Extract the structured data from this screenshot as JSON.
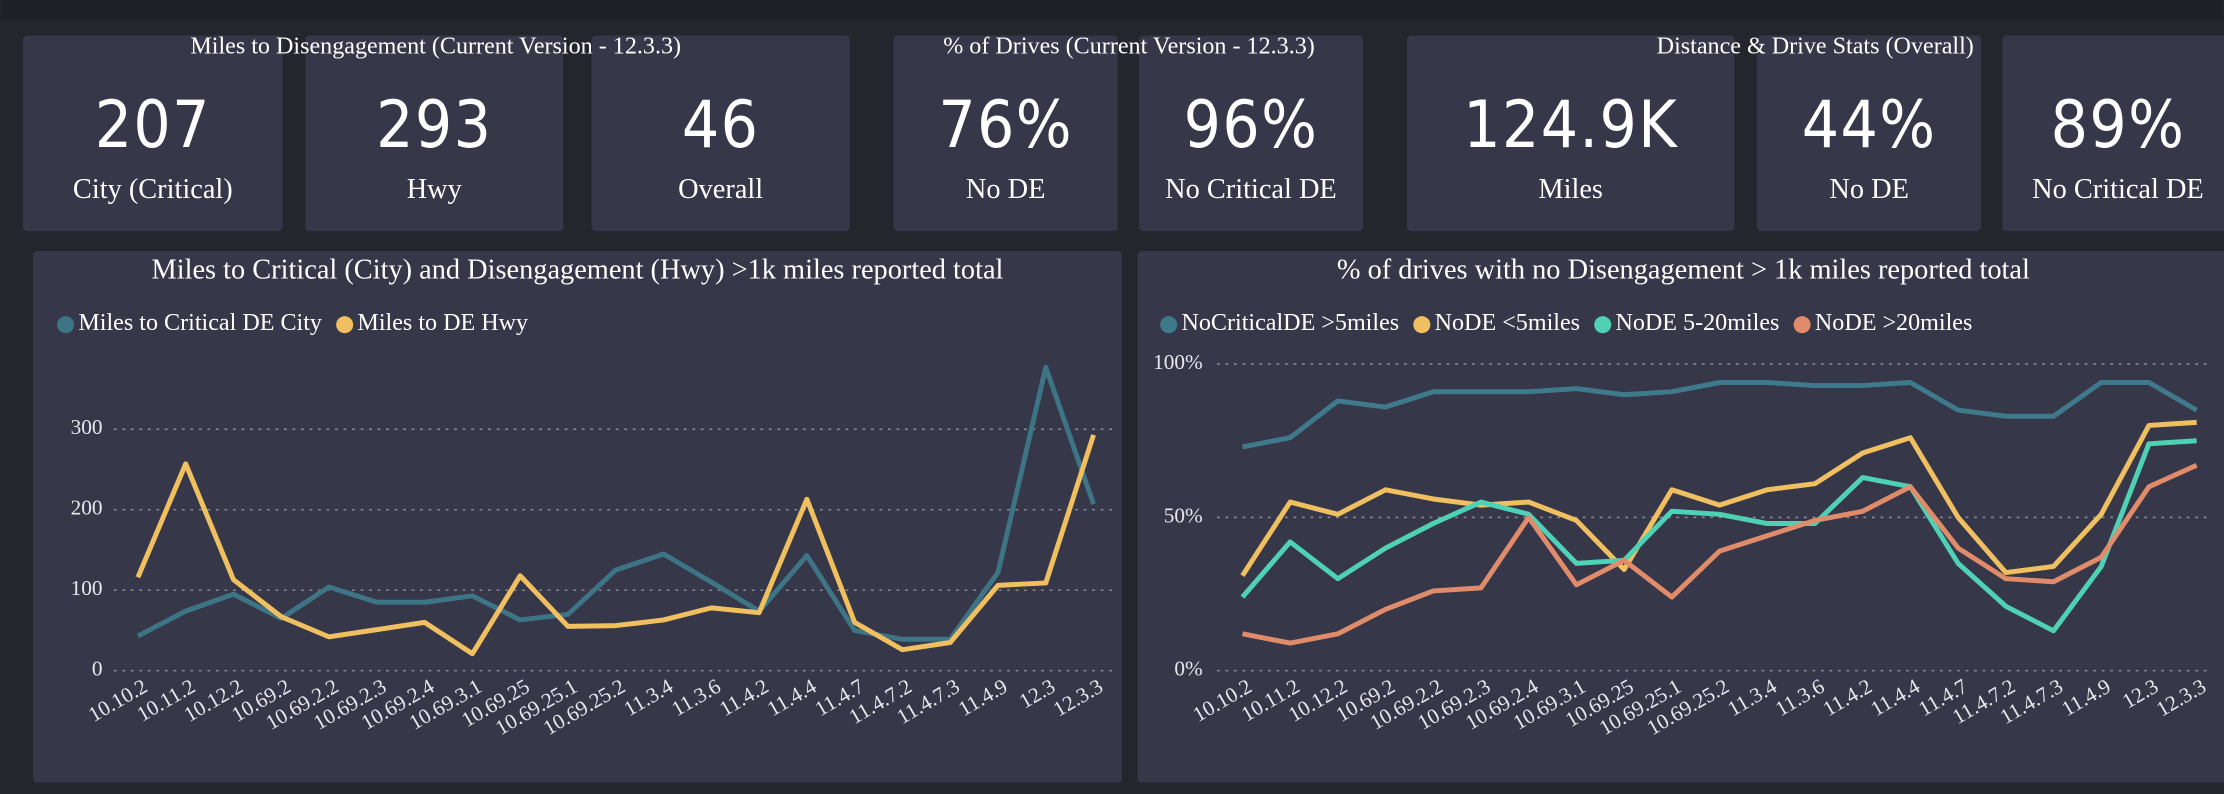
{
  "kpi_groups": [
    {
      "title": "Miles to Disengagement (Current Version - 12.3.3)",
      "cards": [
        {
          "value": "207",
          "label": "City (Critical)"
        },
        {
          "value": "293",
          "label": "Hwy"
        },
        {
          "value": "46",
          "label": "Overall"
        }
      ]
    },
    {
      "title": "% of Drives (Current Version - 12.3.3)",
      "cards": [
        {
          "value": "76%",
          "label": "No DE"
        },
        {
          "value": "96%",
          "label": "No Critical DE"
        }
      ]
    },
    {
      "title": "Distance & Drive Stats (Overall)",
      "cards": [
        {
          "value": "124.9K",
          "label": "Miles"
        },
        {
          "value": "44%",
          "label": "No DE"
        },
        {
          "value": "89%",
          "label": "No Critical DE"
        }
      ]
    }
  ],
  "chart_data": [
    {
      "type": "line",
      "title": "Miles to Critical (City) and Disengagement (Hwy) >1k miles reported total",
      "categories": [
        "10.10.2",
        "10.11.2",
        "10.12.2",
        "10.69.2",
        "10.69.2.2",
        "10.69.2.3",
        "10.69.2.4",
        "10.69.3.1",
        "10.69.25",
        "10.69.25.1",
        "10.69.25.2",
        "11.3.4",
        "11.3.6",
        "11.4.2",
        "11.4.4",
        "11.4.7",
        "11.4.7.2",
        "11.4.7.3",
        "11.4.9",
        "12.3",
        "12.3.3"
      ],
      "series": [
        {
          "name": "Miles to Critical DE City",
          "color": "#3d7587",
          "values": [
            43,
            74,
            95,
            65,
            104,
            85,
            85,
            93,
            63,
            70,
            125,
            145,
            110,
            74,
            143,
            50,
            39,
            39,
            122,
            377,
            207
          ]
        },
        {
          "name": "Miles to DE Hwy",
          "color": "#f0c060",
          "values": [
            116,
            257,
            113,
            67,
            42,
            51,
            60,
            21,
            118,
            55,
            56,
            63,
            78,
            72,
            213,
            60,
            26,
            35,
            106,
            109,
            293
          ]
        }
      ],
      "ylim": [
        0,
        400
      ],
      "yticks": [
        0,
        100,
        200,
        300
      ],
      "grid": true,
      "legend": "top-left"
    },
    {
      "type": "line",
      "title": "% of drives with no Disengagement > 1k miles reported total",
      "categories": [
        "10.10.2",
        "10.11.2",
        "10.12.2",
        "10.69.2",
        "10.69.2.2",
        "10.69.2.3",
        "10.69.2.4",
        "10.69.3.1",
        "10.69.25",
        "10.69.25.1",
        "10.69.25.2",
        "11.3.4",
        "11.3.6",
        "11.4.2",
        "11.4.4",
        "11.4.7",
        "11.4.7.2",
        "11.4.7.3",
        "11.4.9",
        "12.3",
        "12.3.3"
      ],
      "series": [
        {
          "name": "NoCriticalDE >5miles",
          "color": "#3f7a8c",
          "values": [
            73,
            76,
            88,
            86,
            91,
            91,
            91,
            92,
            90,
            91,
            94,
            94,
            93,
            93,
            94,
            85,
            83,
            83,
            94,
            94,
            85
          ]
        },
        {
          "name": "NoDE <5miles",
          "color": "#f0c060",
          "values": [
            31,
            55,
            51,
            59,
            56,
            54,
            55,
            49,
            33,
            59,
            54,
            59,
            61,
            71,
            76,
            50,
            32,
            34,
            51,
            80,
            81
          ]
        },
        {
          "name": "NoDE 5-20miles",
          "color": "#4fd1b5",
          "values": [
            24,
            42,
            30,
            40,
            48,
            55,
            51,
            35,
            36,
            52,
            51,
            48,
            48,
            63,
            60,
            35,
            21,
            13,
            34,
            74,
            75
          ]
        },
        {
          "name": "NoDE >20miles",
          "color": "#e08b6a",
          "values": [
            12,
            9,
            12,
            20,
            26,
            27,
            50,
            28,
            36,
            24,
            39,
            44,
            49,
            52,
            60,
            40,
            30,
            29,
            37,
            60,
            67
          ]
        }
      ],
      "ylim": [
        0,
        105
      ],
      "yticks": [
        {
          "value": 0,
          "label": "0%"
        },
        {
          "value": 50,
          "label": "50%"
        },
        {
          "value": 100,
          "label": "100%"
        }
      ],
      "grid": true,
      "legend": "top-left"
    }
  ]
}
